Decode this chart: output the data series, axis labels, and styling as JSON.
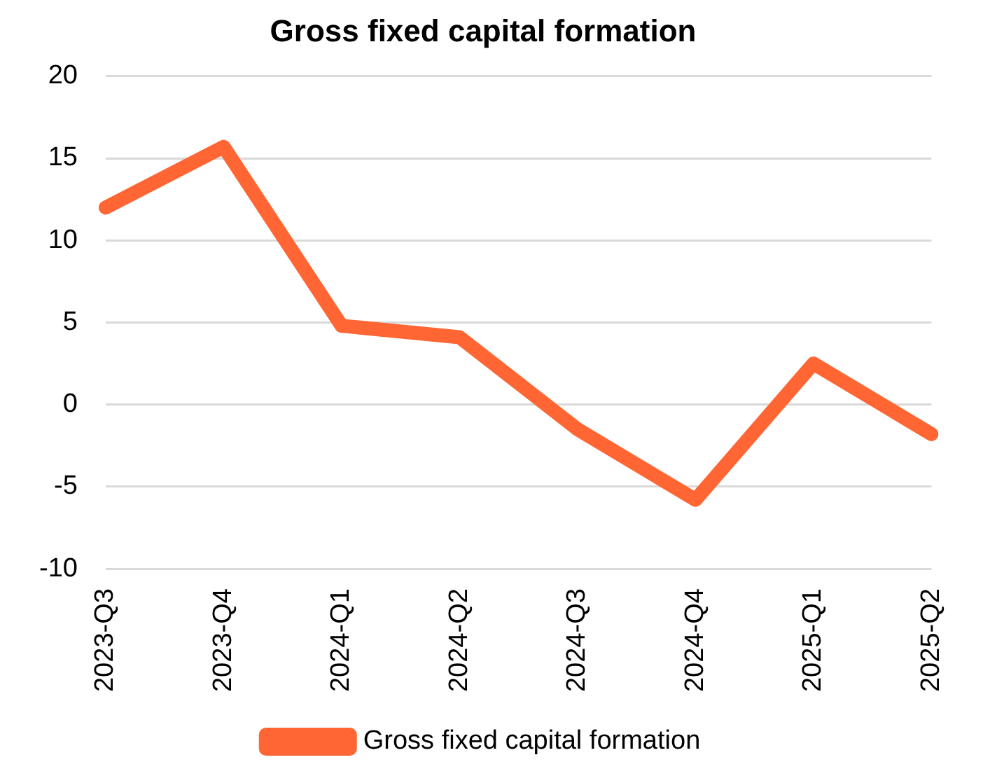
{
  "chart_data": {
    "type": "line",
    "title": "Gross fixed capital formation",
    "categories": [
      "2023-Q3",
      "2023-Q4",
      "2024-Q1",
      "2024-Q2",
      "2024-Q3",
      "2024-Q4",
      "2025-Q1",
      "2025-Q2"
    ],
    "series": [
      {
        "name": "Gross fixed capital formation",
        "color": "#ff6633",
        "values": [
          12.0,
          15.7,
          4.8,
          4.1,
          -1.5,
          -5.8,
          2.5,
          -1.8
        ]
      }
    ],
    "ylim": [
      -10,
      20
    ],
    "yticks": [
      -10,
      -5,
      0,
      5,
      10,
      15,
      20
    ],
    "grid": "y",
    "legend": "bottom",
    "marker": "none",
    "line_style": "solid"
  }
}
